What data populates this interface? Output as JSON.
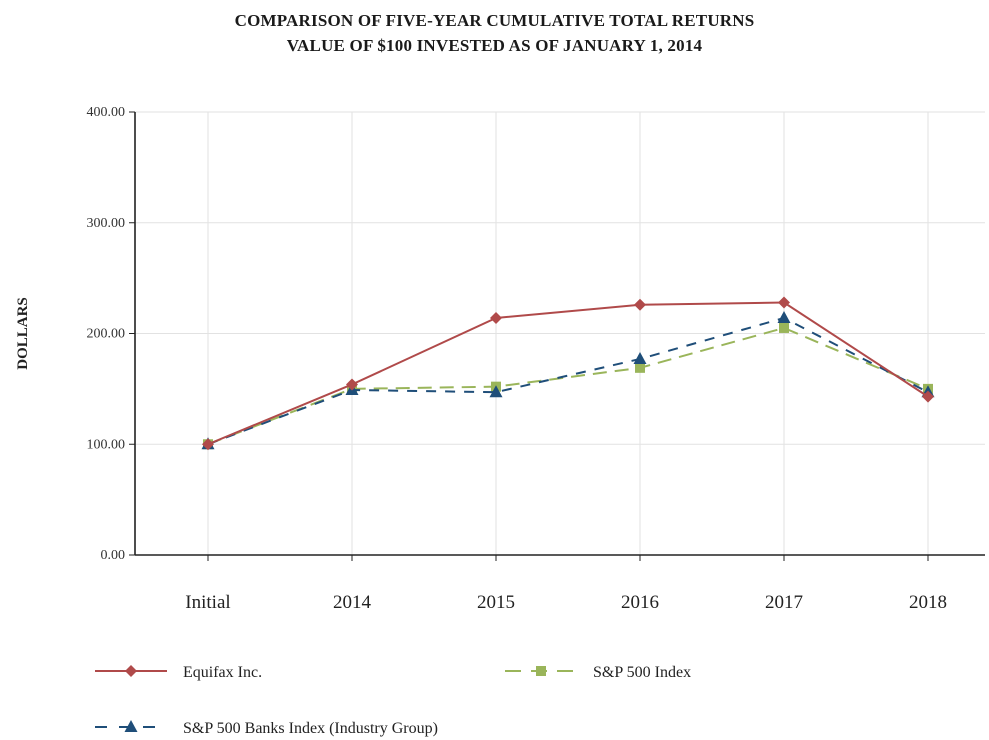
{
  "title_line1": "COMPARISON OF FIVE-YEAR CUMULATIVE TOTAL RETURNS",
  "title_line2": "VALUE OF $100 INVESTED AS OF JANUARY 1, 2014",
  "chart_data": {
    "type": "line",
    "title": "COMPARISON OF FIVE-YEAR CUMULATIVE TOTAL RETURNS VALUE OF $100 INVESTED AS OF JANUARY 1, 2014",
    "xlabel": "",
    "ylabel": "DOLLARS",
    "categories": [
      "Initial",
      "2014",
      "2015",
      "2016",
      "2017",
      "2018"
    ],
    "ylim": [
      0,
      400
    ],
    "yticks": [
      "0.00",
      "100.00",
      "200.00",
      "300.00",
      "400.00"
    ],
    "grid": true,
    "legend_position": "bottom",
    "series": [
      {
        "name": "Equifax Inc.",
        "values": [
          100,
          154,
          214,
          226,
          228,
          143
        ],
        "color": "#b04a4a",
        "style": "solid",
        "marker": "diamond"
      },
      {
        "name": "S&P 500 Index",
        "values": [
          100,
          150,
          152,
          169,
          205,
          150
        ],
        "color": "#9ab55a",
        "style": "dashed",
        "marker": "square"
      },
      {
        "name": "S&P 500 Banks Index (Industry Group)",
        "values": [
          100,
          149,
          147,
          177,
          214,
          147
        ],
        "color": "#1f4e79",
        "style": "dashed",
        "marker": "triangle"
      }
    ]
  }
}
